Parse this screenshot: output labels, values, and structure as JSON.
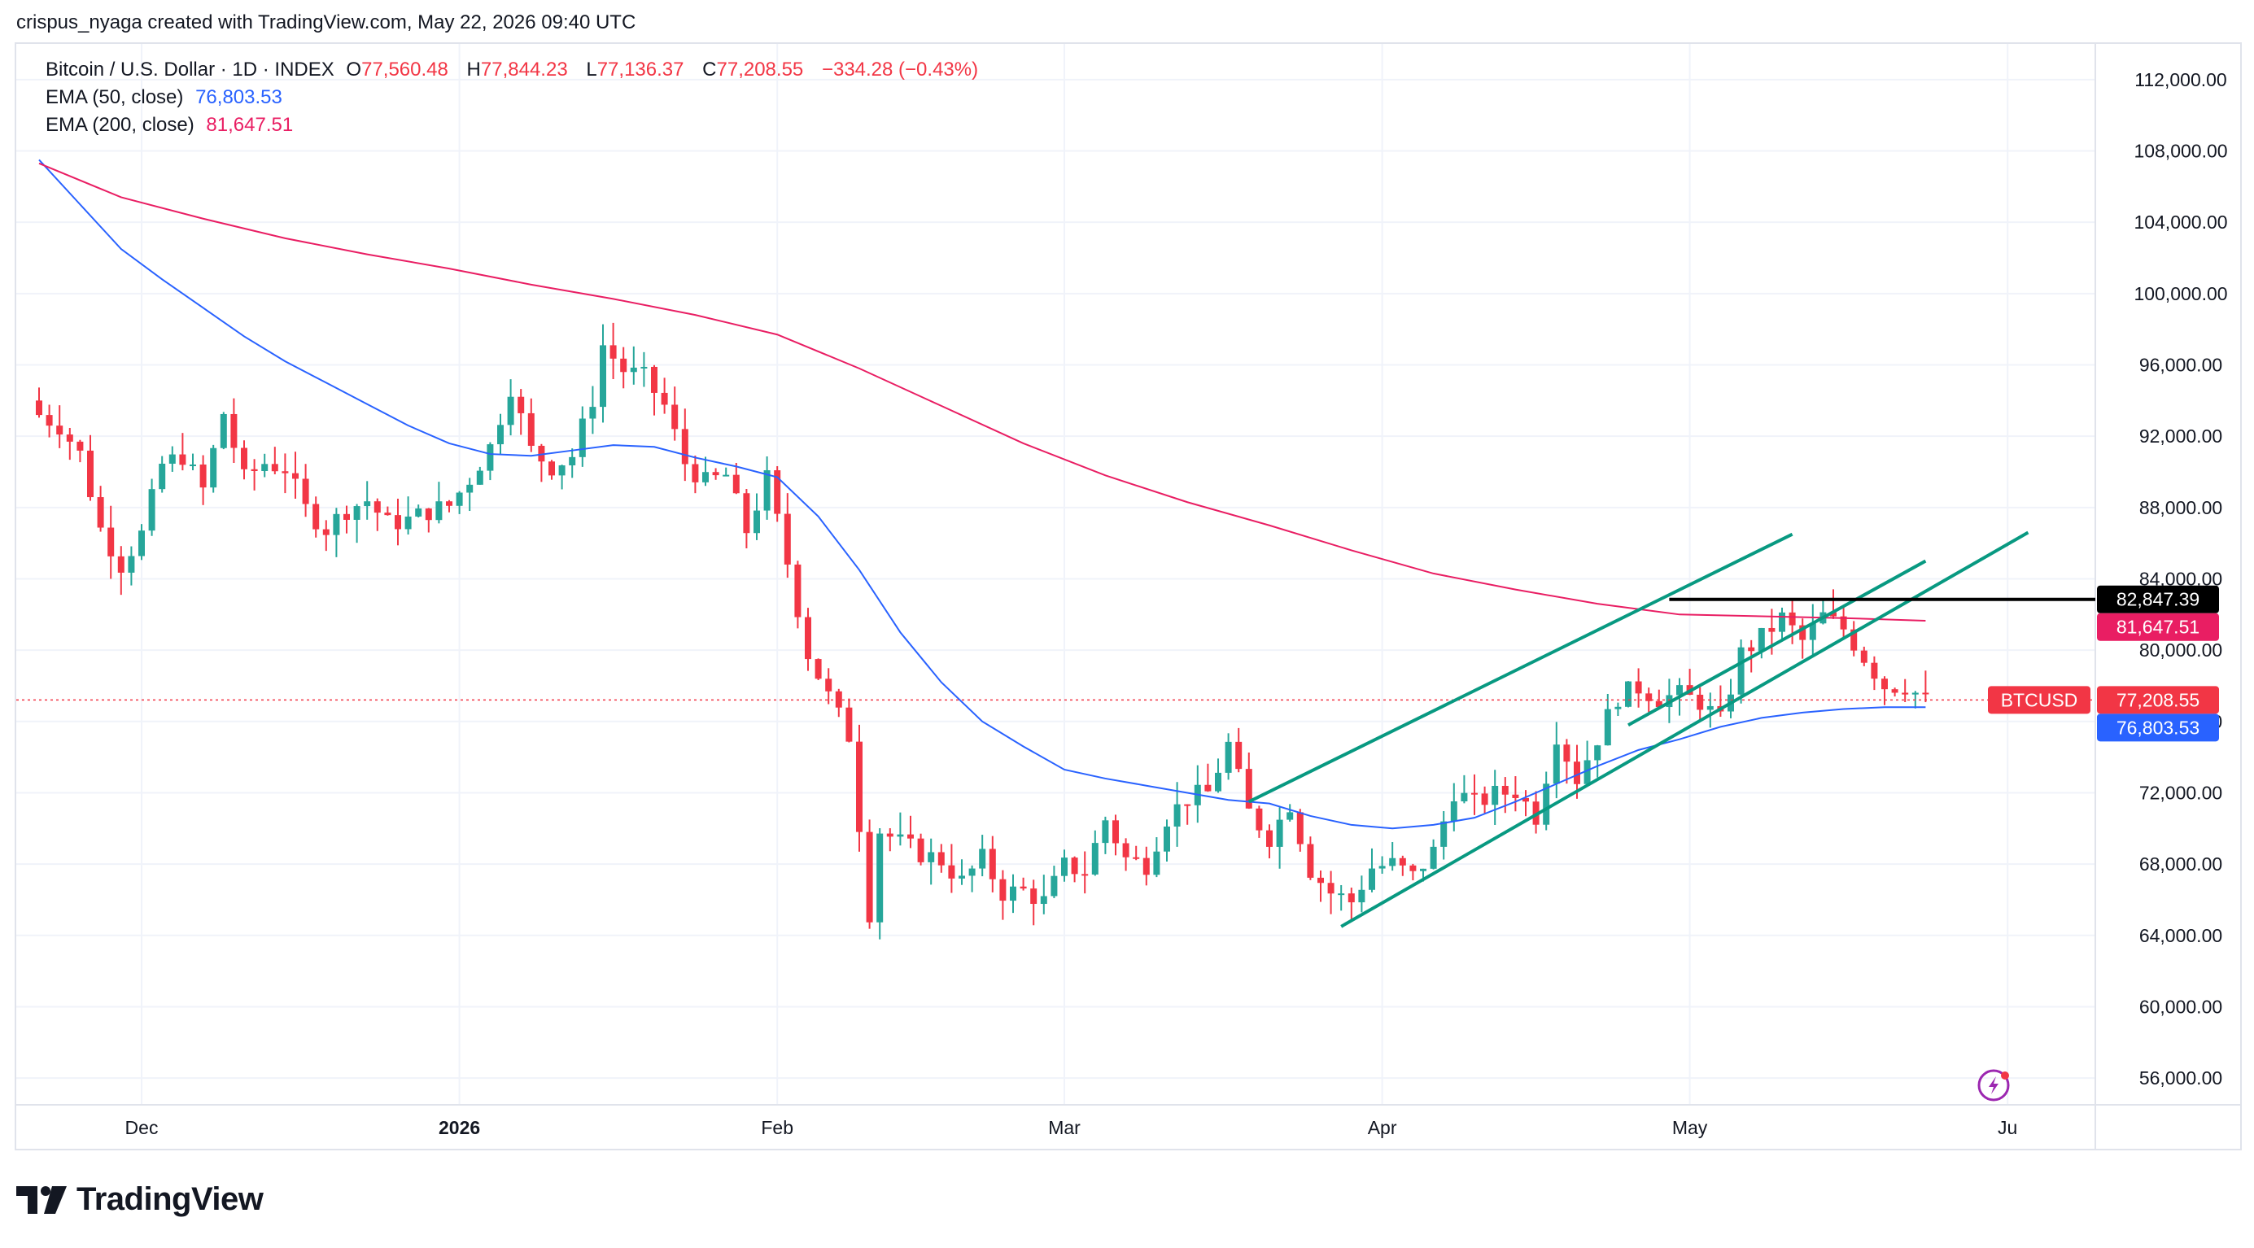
{
  "attribution": "crispus_nyaga created with TradingView.com, May 22, 2026 09:40 UTC",
  "legend": {
    "symbol": "Bitcoin / U.S. Dollar · 1D · INDEX",
    "open_label": "O",
    "open": "77,560.48",
    "high_label": "H",
    "high": "77,844.23",
    "low_label": "L",
    "low": "77,136.37",
    "close_label": "C",
    "close": "77,208.55",
    "change": "−334.28 (−0.43%)",
    "ema50_label": "EMA (50, close)",
    "ema50_value": "76,803.53",
    "ema200_label": "EMA (200, close)",
    "ema200_value": "81,647.51"
  },
  "logo_text": "TradingView",
  "icons": {
    "logo": "tradingview-logo-icon",
    "alert": "lightning-alert-icon"
  },
  "colors": {
    "up": "#26a69a",
    "down": "#f23645",
    "ema50": "#2962ff",
    "ema200": "#e91e63",
    "trendline": "#089981",
    "resistance": "#000000"
  },
  "chart_data": {
    "type": "candlestick",
    "title": "Bitcoin / U.S. Dollar · 1D · INDEX",
    "ylim": [
      54500,
      114000
    ],
    "y_ticks": [
      "112,000.00",
      "108,000.00",
      "104,000.00",
      "100,000.00",
      "96,000.00",
      "92,000.00",
      "88,000.00",
      "84,000.00",
      "80,000.00",
      "76,000.00",
      "72,000.00",
      "68,000.00",
      "64,000.00",
      "60,000.00",
      "56,000.00"
    ],
    "y_tick_values": [
      112000,
      108000,
      104000,
      100000,
      96000,
      92000,
      88000,
      84000,
      80000,
      76000,
      72000,
      68000,
      64000,
      60000,
      56000
    ],
    "x_ticks": [
      "Dec",
      "2026",
      "Feb",
      "Mar",
      "Apr",
      "May",
      "Ju"
    ],
    "x_tick_days": [
      10,
      41,
      72,
      100,
      131,
      161,
      192
    ],
    "bold_tick": "2026",
    "grid": true,
    "close_path": [
      [
        0,
        93200
      ],
      [
        2,
        92600
      ],
      [
        4,
        91000
      ],
      [
        6,
        86800
      ],
      [
        8,
        84800
      ],
      [
        10,
        86500
      ],
      [
        12,
        90400
      ],
      [
        14,
        90900
      ],
      [
        16,
        89000
      ],
      [
        18,
        93300
      ],
      [
        20,
        89600
      ],
      [
        22,
        90500
      ],
      [
        24,
        90200
      ],
      [
        26,
        87900
      ],
      [
        28,
        86800
      ],
      [
        30,
        87900
      ],
      [
        32,
        88400
      ],
      [
        34,
        87100
      ],
      [
        36,
        87300
      ],
      [
        38,
        87800
      ],
      [
        40,
        88100
      ],
      [
        42,
        89600
      ],
      [
        44,
        91400
      ],
      [
        46,
        94800
      ],
      [
        48,
        91200
      ],
      [
        50,
        90300
      ],
      [
        52,
        90900
      ],
      [
        54,
        94100
      ],
      [
        55,
        97100
      ],
      [
        57,
        95700
      ],
      [
        59,
        95300
      ],
      [
        61,
        93700
      ],
      [
        63,
        90500
      ],
      [
        65,
        89400
      ],
      [
        67,
        89800
      ],
      [
        69,
        86700
      ],
      [
        71,
        89600
      ],
      [
        73,
        84900
      ],
      [
        75,
        79800
      ],
      [
        77,
        77400
      ],
      [
        79,
        75200
      ],
      [
        81,
        65300
      ],
      [
        82,
        69900
      ],
      [
        84,
        69200
      ],
      [
        86,
        68600
      ],
      [
        88,
        68200
      ],
      [
        90,
        67000
      ],
      [
        92,
        68300
      ],
      [
        94,
        66400
      ],
      [
        96,
        66500
      ],
      [
        98,
        65900
      ],
      [
        100,
        67900
      ],
      [
        102,
        67600
      ],
      [
        104,
        70500
      ],
      [
        106,
        68300
      ],
      [
        108,
        68000
      ],
      [
        110,
        70600
      ],
      [
        112,
        71700
      ],
      [
        114,
        72000
      ],
      [
        116,
        74700
      ],
      [
        118,
        70900
      ],
      [
        120,
        69500
      ],
      [
        122,
        71400
      ],
      [
        124,
        67700
      ],
      [
        126,
        66400
      ],
      [
        128,
        65900
      ],
      [
        130,
        67800
      ],
      [
        132,
        68000
      ],
      [
        134,
        67300
      ],
      [
        136,
        68700
      ],
      [
        138,
        72100
      ],
      [
        140,
        71400
      ],
      [
        142,
        71900
      ],
      [
        144,
        72100
      ],
      [
        146,
        70700
      ],
      [
        148,
        75300
      ],
      [
        150,
        72800
      ],
      [
        152,
        75100
      ],
      [
        154,
        77400
      ],
      [
        156,
        77900
      ],
      [
        158,
        77300
      ],
      [
        160,
        77500
      ],
      [
        162,
        77100
      ],
      [
        164,
        76000
      ],
      [
        166,
        79800
      ],
      [
        168,
        80700
      ],
      [
        170,
        81800
      ],
      [
        172,
        80500
      ],
      [
        174,
        81900
      ],
      [
        176,
        81200
      ],
      [
        178,
        79600
      ],
      [
        180,
        78000
      ],
      [
        182,
        78000
      ],
      [
        184,
        77200
      ]
    ],
    "candles_shown": "daily",
    "series": [
      {
        "name": "EMA (50, close)",
        "last_value": 76803.53,
        "points": [
          [
            0,
            107500
          ],
          [
            4,
            105000
          ],
          [
            8,
            102500
          ],
          [
            12,
            100800
          ],
          [
            16,
            99200
          ],
          [
            20,
            97600
          ],
          [
            24,
            96200
          ],
          [
            28,
            95000
          ],
          [
            32,
            93800
          ],
          [
            36,
            92600
          ],
          [
            40,
            91600
          ],
          [
            44,
            91000
          ],
          [
            48,
            90900
          ],
          [
            52,
            91200
          ],
          [
            56,
            91500
          ],
          [
            60,
            91400
          ],
          [
            64,
            90800
          ],
          [
            68,
            90300
          ],
          [
            72,
            89700
          ],
          [
            76,
            87500
          ],
          [
            80,
            84500
          ],
          [
            84,
            81000
          ],
          [
            88,
            78200
          ],
          [
            92,
            76000
          ],
          [
            96,
            74600
          ],
          [
            100,
            73300
          ],
          [
            104,
            72800
          ],
          [
            108,
            72400
          ],
          [
            112,
            72000
          ],
          [
            116,
            71600
          ],
          [
            120,
            71400
          ],
          [
            124,
            70700
          ],
          [
            128,
            70200
          ],
          [
            132,
            70000
          ],
          [
            136,
            70200
          ],
          [
            140,
            70600
          ],
          [
            144,
            71500
          ],
          [
            148,
            72500
          ],
          [
            152,
            73500
          ],
          [
            156,
            74400
          ],
          [
            160,
            75000
          ],
          [
            164,
            75700
          ],
          [
            168,
            76200
          ],
          [
            172,
            76500
          ],
          [
            176,
            76700
          ],
          [
            180,
            76800
          ],
          [
            184,
            76800
          ]
        ]
      },
      {
        "name": "EMA (200, close)",
        "last_value": 81647.51,
        "points": [
          [
            0,
            107300
          ],
          [
            8,
            105400
          ],
          [
            16,
            104200
          ],
          [
            24,
            103100
          ],
          [
            32,
            102200
          ],
          [
            40,
            101400
          ],
          [
            48,
            100500
          ],
          [
            56,
            99700
          ],
          [
            64,
            98800
          ],
          [
            72,
            97700
          ],
          [
            80,
            95800
          ],
          [
            88,
            93700
          ],
          [
            96,
            91600
          ],
          [
            104,
            89800
          ],
          [
            112,
            88300
          ],
          [
            120,
            87000
          ],
          [
            128,
            85600
          ],
          [
            136,
            84300
          ],
          [
            144,
            83400
          ],
          [
            152,
            82600
          ],
          [
            160,
            82000
          ],
          [
            168,
            81900
          ],
          [
            176,
            81800
          ],
          [
            184,
            81650
          ]
        ]
      }
    ],
    "annotations": {
      "resistance_label": "82,847.39",
      "resistance_value": 82847.39,
      "resistance_days": [
        159,
        194
      ],
      "upper_trendline": [
        [
          118,
          71500
        ],
        [
          171,
          86500
        ]
      ],
      "lower_trendline": [
        [
          127,
          64500
        ],
        [
          194,
          86600
        ]
      ],
      "upper_trendline_2": [
        [
          155,
          75800
        ],
        [
          184,
          85000
        ]
      ]
    },
    "price_tags": [
      {
        "label": "82,847.39",
        "value": 82847.39,
        "color": "#000000"
      },
      {
        "label": "81,647.51",
        "value": 81647.51,
        "color": "#e91e63"
      },
      {
        "label": "77,208.55",
        "value": 77208.55,
        "color": "#f23645",
        "symbol": "BTCUSD"
      },
      {
        "label": "76,803.53",
        "value": 76803.53,
        "color": "#2962ff"
      }
    ]
  }
}
